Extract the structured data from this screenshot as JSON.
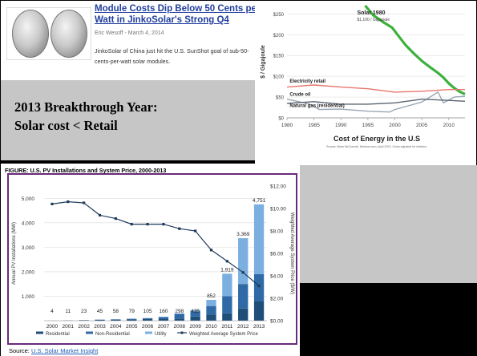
{
  "article": {
    "title": "Module Costs Dip Below 50 Cents per Watt in JinkoSolar's Strong Q4",
    "byline": "Eric Wesoff - March 4, 2014",
    "summary": "JinkoSolar of China just hit the U.S. SunShot goal of sub-50-cents-per-watt solar modules."
  },
  "callout": {
    "line1": "2013 Breakthrough Year:",
    "line2": "Solar cost < Retail"
  },
  "figure_caption": "FIGURE: U.S. PV Installations and System Price, 2000-2013",
  "source": {
    "prefix": "Source: ",
    "link": "U.S. Solar Market Insight"
  },
  "colors": {
    "solar_line": "#3cb13c",
    "electricity_line": "#e8766d",
    "crude_line": "#9aa6b4",
    "gas_line": "#5b6470",
    "residential": "#1f4e79",
    "non_residential": "#2f6aa6",
    "utility": "#7bafe0",
    "price_line": "#1f3b5c",
    "frame": "#6a2a7a"
  },
  "chart_data": [
    {
      "type": "line",
      "title": "Cost of Energy in the U.S",
      "footnote": "Source: Brian McConnell, Medium.com, April 2013. Costs adjusted for inflation.",
      "ylabel": "$ / Gigajoule",
      "xlim": [
        1980,
        2013
      ],
      "ylim": [
        0,
        270
      ],
      "x_ticks": [
        1980,
        1985,
        1990,
        1995,
        2000,
        2005,
        2010
      ],
      "y_ticks": [
        0,
        50,
        100,
        150,
        200,
        250
      ],
      "y_tick_labels": [
        "$0",
        "$50",
        "$100",
        "$150",
        "$200",
        "$250"
      ],
      "annotations": [
        {
          "series": "Solar",
          "text": "Solar 1980",
          "subtext": "$1,100 / Gigajoule"
        }
      ],
      "series": [
        {
          "name": "Solar",
          "x": [
            1994.5,
            1996,
            1998,
            1999.5,
            2000.5,
            2002,
            2003.5,
            2005,
            2006.5,
            2008,
            2009,
            2010,
            2011,
            2012,
            2013
          ],
          "y": [
            270,
            247,
            229,
            217,
            200,
            175,
            155,
            137,
            122,
            108,
            97,
            83,
            72,
            63,
            57
          ]
        },
        {
          "name": "Electricity retail",
          "x": [
            1980,
            1985,
            1990,
            1995,
            2000,
            2005,
            2010,
            2013
          ],
          "y": [
            74,
            79,
            74,
            70,
            62,
            64,
            68,
            68
          ]
        },
        {
          "name": "Crude oil",
          "x": [
            1980,
            1984,
            1986,
            1990,
            1995,
            1999,
            2000,
            2005,
            2008,
            2009,
            2011,
            2013
          ],
          "y": [
            45,
            34,
            20,
            21,
            16,
            14,
            20,
            38,
            62,
            36,
            50,
            52
          ]
        },
        {
          "name": "Natural gas (residential)",
          "x": [
            1980,
            1985,
            1990,
            1995,
            2000,
            2005,
            2010,
            2013
          ],
          "y": [
            35,
            39,
            33,
            33,
            36,
            45,
            42,
            40
          ]
        }
      ]
    },
    {
      "type": "bar",
      "stacked": true,
      "categories": [
        "2000",
        "2001",
        "2002",
        "2003",
        "2004",
        "2005",
        "2006",
        "2007",
        "2008",
        "2009",
        "2010",
        "2011",
        "2012",
        "2013"
      ],
      "ylabel": "Annual PV Installations (MW)",
      "y2label": "Weighted Average System Price ($/W)",
      "ylim": [
        0,
        5500
      ],
      "y2lim": [
        0,
        12
      ],
      "y_ticks": [
        0,
        1000,
        2000,
        3000,
        4000,
        5000
      ],
      "y_tick_labels": [
        "",
        "1,000",
        "2,000",
        "3,000",
        "4,000",
        "5,000"
      ],
      "y2_ticks": [
        0,
        2,
        4,
        6,
        8,
        10,
        12
      ],
      "y2_tick_labels": [
        "$0.00",
        "$2.00",
        "$4.00",
        "$6.00",
        "$8.00",
        "$10.00",
        "$12.00"
      ],
      "totals_labels": [
        "4",
        "11",
        "23",
        "45",
        "58",
        "79",
        "105",
        "160",
        "298",
        "435",
        "852",
        "1,919",
        "3,369",
        "4,751"
      ],
      "legend": "bottom",
      "series": [
        {
          "name": "Residential",
          "values": [
            4,
            10,
            20,
            35,
            44,
            53,
            68,
            65,
            90,
            170,
            250,
            300,
            500,
            800
          ]
        },
        {
          "name": "Non-Residential",
          "values": [
            0,
            1,
            3,
            10,
            14,
            26,
            37,
            85,
            190,
            215,
            350,
            700,
            1000,
            1100
          ]
        },
        {
          "name": "Utility",
          "values": [
            0,
            0,
            0,
            0,
            0,
            0,
            0,
            10,
            18,
            50,
            252,
            919,
            1869,
            2851
          ]
        },
        {
          "name": "Weighted Average System Price",
          "type": "line",
          "axis": "y2",
          "values": [
            10.4,
            10.6,
            10.5,
            9.4,
            9.1,
            8.6,
            8.6,
            8.6,
            8.2,
            8.0,
            6.3,
            5.3,
            4.3,
            3.1
          ]
        }
      ]
    }
  ]
}
